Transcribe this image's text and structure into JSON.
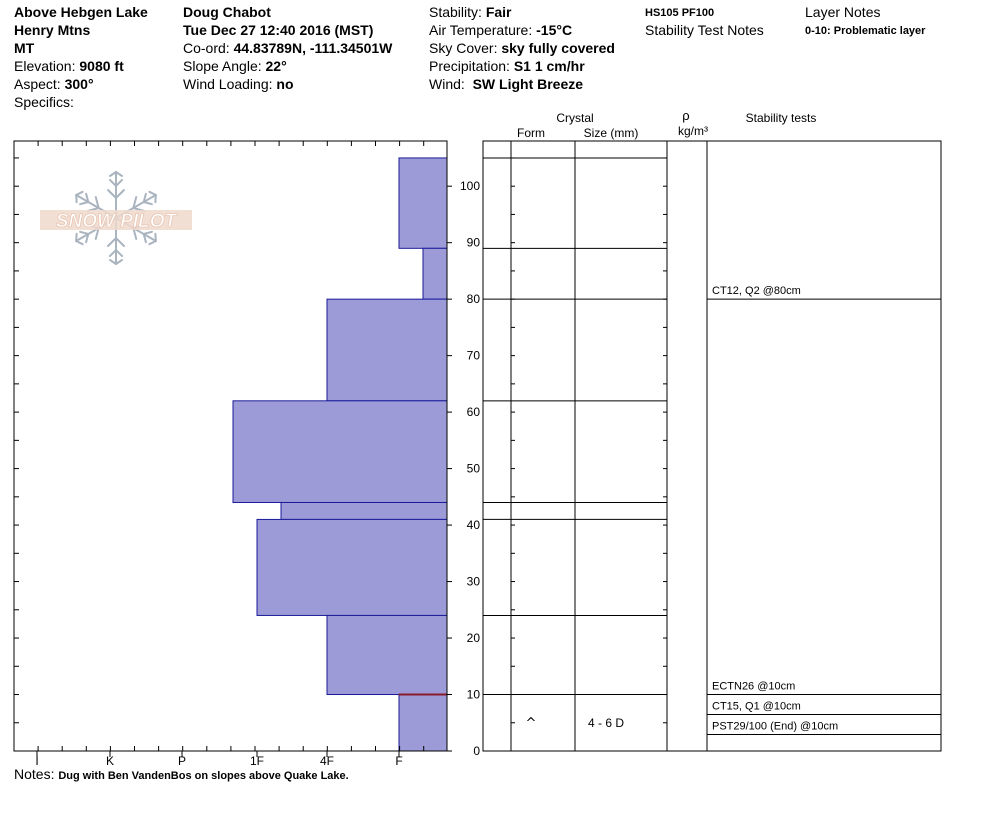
{
  "header": {
    "location": "Above Hebgen Lake",
    "range": "Henry Mtns",
    "state": "MT",
    "elevation_label": "Elevation:",
    "elevation": "9080 ft",
    "aspect_label": "Aspect:",
    "aspect": "300°",
    "specifics_label": "Specifics:",
    "observer": "Doug Chabot",
    "datetime": "Tue Dec 27 12:40 2016 (MST)",
    "coord_label": "Co-ord:",
    "coord": "44.83789N, -111.34501W",
    "slope_label": "Slope Angle:",
    "slope": "22°",
    "wind_loading_label": "Wind Loading:",
    "wind_loading": "no",
    "stability_label": "Stability:",
    "stability": "Fair",
    "air_temp_label": "Air Temperature:",
    "air_temp": "-15°C",
    "sky_label": "Sky Cover:",
    "sky": "sky fully covered",
    "precip_label": "Precipitation:",
    "precip": "S1 1 cm/hr",
    "wind_label": "Wind:",
    "wind": "SW Light Breeze",
    "hs_pf": "HS105  PF100",
    "stability_test_notes": "Stability Test Notes",
    "layer_notes": "Layer Notes",
    "layer_note_1": "0-10: Problematic layer"
  },
  "logo_text": "SNOW PILOT",
  "columns": {
    "crystal": "Crystal",
    "form": "Form",
    "size": "Size (mm)",
    "rho": "ρ",
    "density_unit": "kg/m³",
    "stability_tests": "Stability tests"
  },
  "notes": {
    "label": "Notes:",
    "text": "Dug with Ben VandenBos on slopes above Quake Lake."
  },
  "chart_data": {
    "type": "bar",
    "orientation": "horizontal",
    "description_axis_x": "hand hardness",
    "hardness_ticks": [
      "I",
      "K",
      "P",
      "1F",
      "4F",
      "F"
    ],
    "y_ticks": [
      0,
      10,
      20,
      30,
      40,
      50,
      60,
      70,
      80,
      90,
      100
    ],
    "ylim": [
      0,
      108
    ],
    "snow_height": 105,
    "bar_color": "#9c9bd8",
    "bar_edge_color": "#1a1a99",
    "weak_layer_color": "#8b1a2a",
    "layers": [
      {
        "top": 105,
        "bottom": 89,
        "hardness": "F"
      },
      {
        "top": 89,
        "bottom": 80,
        "hardness": "F+"
      },
      {
        "top": 80,
        "bottom": 62,
        "hardness": "4F"
      },
      {
        "top": 62,
        "bottom": 44,
        "hardness": "1F-"
      },
      {
        "top": 44,
        "bottom": 41,
        "hardness": "1F+"
      },
      {
        "top": 41,
        "bottom": 24,
        "hardness": "1F"
      },
      {
        "top": 24,
        "bottom": 10,
        "hardness": "4F"
      },
      {
        "top": 10,
        "bottom": 0,
        "hardness": "F"
      }
    ],
    "weak_layer_depth": 10,
    "crystal_layers": [
      {
        "top": 10,
        "bottom": 0,
        "form": "^",
        "size": "4 - 6 D"
      }
    ],
    "stability_tests": [
      {
        "text": "CT12, Q2 @80cm",
        "depth": 80
      },
      {
        "text": "ECTN26 @10cm",
        "depth": 10
      },
      {
        "text": "CT15, Q1 @10cm",
        "depth": 10
      },
      {
        "text": "PST29/100 (End) @10cm",
        "depth": 10
      }
    ]
  }
}
